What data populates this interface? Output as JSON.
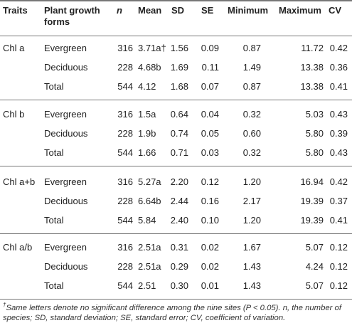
{
  "table": {
    "header": [
      "Traits",
      "Plant growth forms",
      "n",
      "Mean",
      "SD",
      "SE",
      "Minimum",
      "Maximum",
      "CV"
    ],
    "groups": [
      {
        "trait": "Chl a",
        "rows": [
          [
            "Evergreen",
            "316",
            "3.71a†",
            "1.56",
            "0.09",
            "0.87",
            "11.72",
            "0.42"
          ],
          [
            "Deciduous",
            "228",
            "4.68b",
            "1.69",
            "0.11",
            "1.49",
            "13.38",
            "0.36"
          ],
          [
            "Total",
            "544",
            "4.12",
            "1.68",
            "0.07",
            "0.87",
            "13.38",
            "0.41"
          ]
        ]
      },
      {
        "trait": "Chl b",
        "rows": [
          [
            "Evergreen",
            "316",
            "1.5a",
            "0.64",
            "0.04",
            "0.32",
            "5.03",
            "0.43"
          ],
          [
            "Deciduous",
            "228",
            "1.9b",
            "0.74",
            "0.05",
            "0.60",
            "5.80",
            "0.39"
          ],
          [
            "Total",
            "544",
            "1.66",
            "0.71",
            "0.03",
            "0.32",
            "5.80",
            "0.43"
          ]
        ]
      },
      {
        "trait": "Chl a+b",
        "rows": [
          [
            "Evergreen",
            "316",
            "5.27a",
            "2.20",
            "0.12",
            "1.20",
            "16.94",
            "0.42"
          ],
          [
            "Deciduous",
            "228",
            "6.64b",
            "2.44",
            "0.16",
            "2.17",
            "19.39",
            "0.37"
          ],
          [
            "Total",
            "544",
            "5.84",
            "2.40",
            "0.10",
            "1.20",
            "19.39",
            "0.41"
          ]
        ]
      },
      {
        "trait": "Chl a/b",
        "rows": [
          [
            "Evergreen",
            "316",
            "2.51a",
            "0.31",
            "0.02",
            "1.67",
            "5.07",
            "0.12"
          ],
          [
            "Deciduous",
            "228",
            "2.51a",
            "0.29",
            "0.02",
            "1.43",
            "4.24",
            "0.12"
          ],
          [
            "Total",
            "544",
            "2.51",
            "0.30",
            "0.01",
            "1.43",
            "5.07",
            "0.12"
          ]
        ]
      }
    ],
    "footnote": {
      "marker": "†",
      "text": "Same letters denote no significant difference among the nine sites (P < 0.05). n, the number of species; SD, standard deviation; SE, standard error; CV, coefficient of variation."
    }
  }
}
